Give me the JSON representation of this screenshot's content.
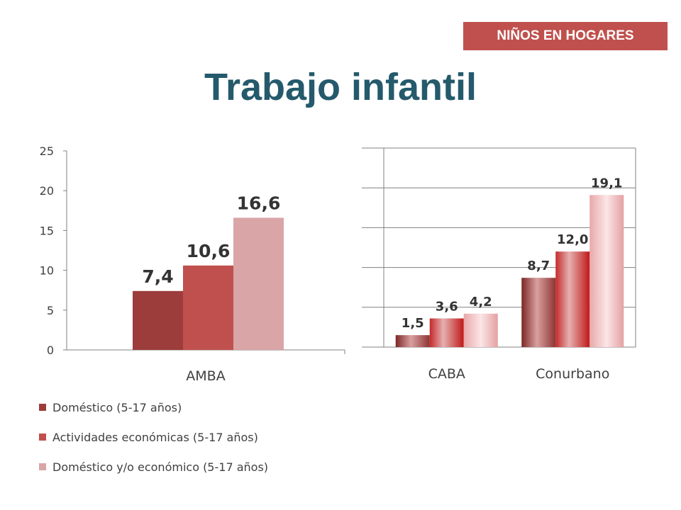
{
  "badge": "NIÑOS EN HOGARES",
  "title": "Trabajo infantil",
  "colors": {
    "series": [
      "#9c3d3b",
      "#c0504d",
      "#d9a5a6"
    ],
    "axis": "#808080",
    "grid": "#808080",
    "label": "#404040",
    "data_label": "#333333"
  },
  "chart_data": [
    {
      "type": "bar",
      "categories": [
        "AMBA"
      ],
      "series": [
        {
          "name": "Doméstico (5-17 años)",
          "values": [
            7.4
          ]
        },
        {
          "name": "Actividades económicas (5-17 años)",
          "values": [
            10.6
          ]
        },
        {
          "name": "Doméstico y/o económico (5-17 años)",
          "values": [
            16.6
          ]
        }
      ],
      "data_labels": [
        [
          "7,4"
        ],
        [
          "10,6"
        ],
        [
          "16,6"
        ]
      ],
      "ylim": [
        0,
        25
      ],
      "yticks": [
        "0",
        "5",
        "10",
        "15",
        "20",
        "25"
      ],
      "grid": false,
      "legend": "bottom-left"
    },
    {
      "type": "bar",
      "categories": [
        "CABA",
        "Conurbano"
      ],
      "series": [
        {
          "name": "Doméstico (5-17 años)",
          "values": [
            1.5,
            8.7
          ]
        },
        {
          "name": "Actividades económicas (5-17 años)",
          "values": [
            3.6,
            12.0
          ]
        },
        {
          "name": "Doméstico y/o económico (5-17 años)",
          "values": [
            4.2,
            19.1
          ]
        }
      ],
      "data_labels": [
        [
          "1,5",
          "8,7"
        ],
        [
          "3,6",
          "12,0"
        ],
        [
          "4,2",
          "19,1"
        ]
      ],
      "ylim": [
        0,
        25
      ],
      "yticks": [],
      "grid": true,
      "legend": "none"
    }
  ]
}
